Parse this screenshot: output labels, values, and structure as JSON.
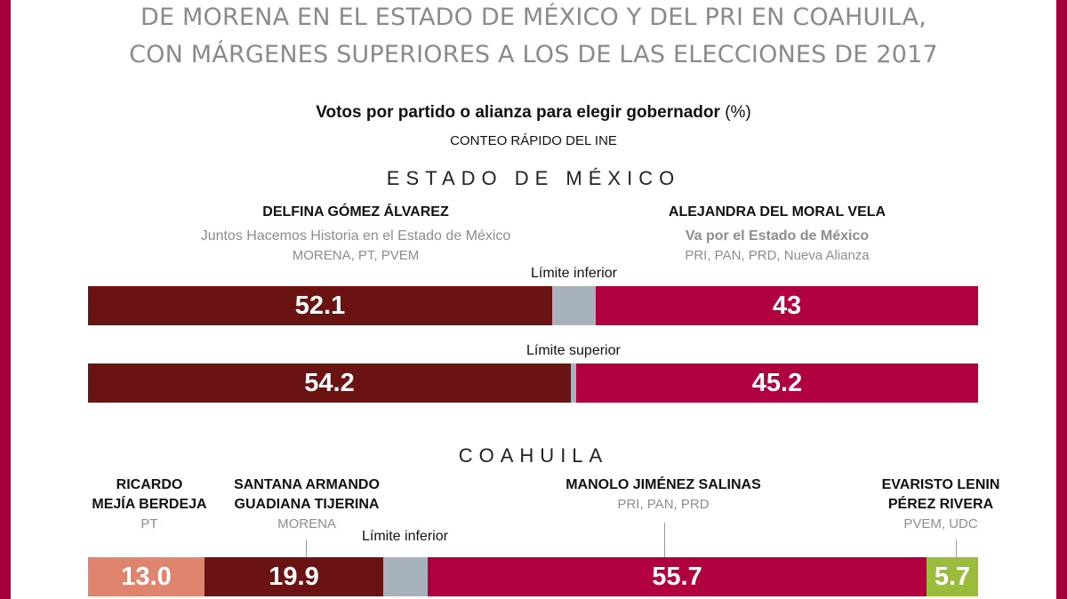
{
  "headline": {
    "line1": "DE MORENA EN EL ESTADO DE MÉXICO Y DEL PRI EN COAHUILA,",
    "line2": "CON MÁRGENES SUPERIORES A LOS DE LAS ELECCIONES DE 2017"
  },
  "subtitle": {
    "main": "Votos por partido o alianza para elegir gobernador",
    "unit": "(%)"
  },
  "source": "CONTEO RÁPIDO DEL INE",
  "colors": {
    "morena": "#6b1312",
    "alliance_pri": "#b0003f",
    "pt": "#e0856d",
    "pvem_udc": "#9bbb3d",
    "remainder": "#a8b2bc",
    "frame": "#a6003c"
  },
  "edomex": {
    "section_title": "ESTADO DE MÉXICO",
    "left": {
      "name": "DELFINA GÓMEZ ÁLVAREZ",
      "alliance": "Juntos Hacemos Historia en el Estado de México",
      "parties": "MORENA, PT, PVEM"
    },
    "right": {
      "name": "ALEJANDRA DEL MORAL VELA",
      "alliance": "Va por el Estado de México",
      "parties": "PRI, PAN, PRD, Nueva Alianza"
    }
  },
  "coahuila": {
    "section_title": "COAHUILA",
    "candidates": [
      {
        "name1": "RICARDO",
        "name2": "MEJÍA BERDEJA",
        "parties": "PT"
      },
      {
        "name1": "SANTANA ARMANDO",
        "name2": "GUADIANA TIJERINA",
        "parties": "MORENA"
      },
      {
        "name1": "MANOLO JIMÉNEZ SALINAS",
        "name2": "",
        "parties": "PRI, PAN, PRD"
      },
      {
        "name1": "EVARISTO LENIN",
        "name2": "PÉREZ RIVERA",
        "parties": "PVEM, UDC"
      }
    ]
  },
  "chart_data": [
    {
      "type": "bar",
      "stacked": true,
      "orientation": "horizontal",
      "title": "ESTADO DE MÉXICO",
      "xlim": [
        0,
        100
      ],
      "bars": [
        {
          "label": "Límite inferior",
          "segments": [
            {
              "candidate": "DELFINA GÓMEZ ÁLVAREZ",
              "value": 52.1,
              "label": "52.1"
            },
            {
              "candidate": "",
              "value": 4.9,
              "label": ""
            },
            {
              "candidate": "ALEJANDRA DEL MORAL VELA",
              "value": 43,
              "label": "43"
            }
          ]
        },
        {
          "label": "Límite superior",
          "segments": [
            {
              "candidate": "DELFINA GÓMEZ ÁLVAREZ",
              "value": 54.2,
              "label": "54.2"
            },
            {
              "candidate": "",
              "value": 0.6,
              "label": ""
            },
            {
              "candidate": "ALEJANDRA DEL MORAL VELA",
              "value": 45.2,
              "label": "45.2"
            }
          ]
        }
      ]
    },
    {
      "type": "bar",
      "stacked": true,
      "orientation": "horizontal",
      "title": "COAHUILA",
      "xlim": [
        0,
        100
      ],
      "bars": [
        {
          "label": "Límite inferior",
          "segments": [
            {
              "candidate": "RICARDO MEJÍA BERDEJA",
              "value": 13.0,
              "label": "13.0"
            },
            {
              "candidate": "SANTANA ARMANDO GUADIANA TIJERINA",
              "value": 19.9,
              "label": "19.9"
            },
            {
              "candidate": "",
              "value": 5.0,
              "label": ""
            },
            {
              "candidate": "MANOLO JIMÉNEZ SALINAS",
              "value": 55.7,
              "label": "55.7"
            },
            {
              "candidate": "EVARISTO LENIN PÉREZ RIVERA",
              "value": 5.7,
              "label": "5.7"
            }
          ]
        }
      ]
    }
  ]
}
